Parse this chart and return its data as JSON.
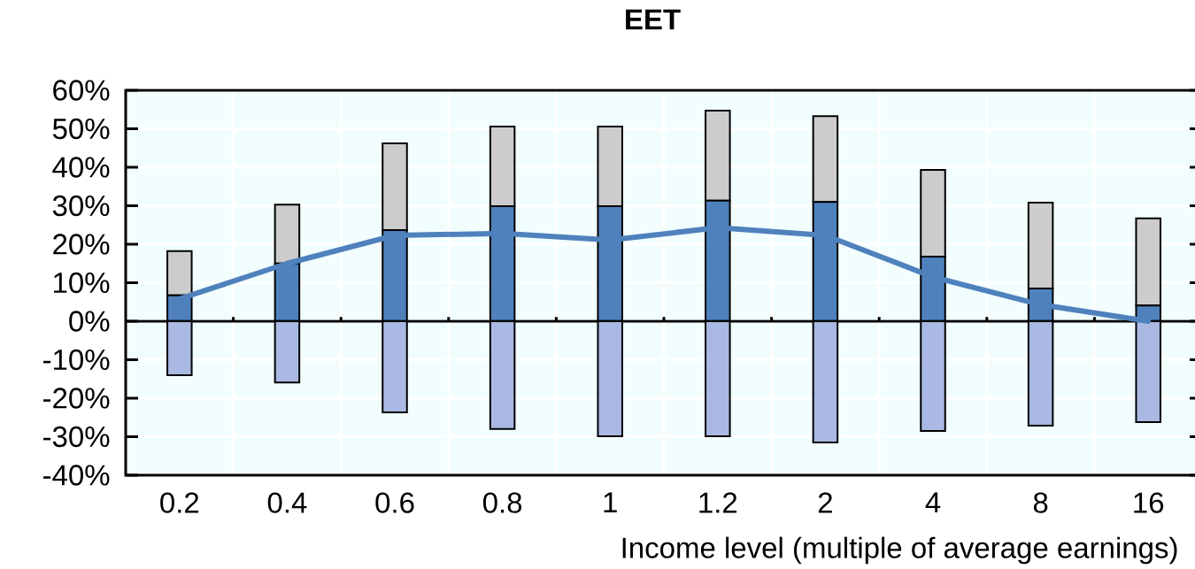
{
  "chart_data": {
    "type": "bar",
    "title": "EET",
    "xlabel": "Income level (multiple of average earnings)",
    "categories": [
      "0.2",
      "0.4",
      "0.6",
      "0.8",
      "1",
      "1.2",
      "2",
      "4",
      "8",
      "16"
    ],
    "stacked": true,
    "grid": true,
    "series": [
      {
        "color": "#4f81bd",
        "values": [
          6.7,
          15,
          23.7,
          29.9,
          29.9,
          31.3,
          31,
          16.8,
          8.5,
          4.1
        ]
      },
      {
        "color": "#cccccc",
        "values": [
          11.5,
          15.3,
          22.5,
          20.7,
          20.7,
          23.4,
          22.3,
          22.5,
          22.3,
          22.6
        ]
      },
      {
        "color": "#a9b9e3",
        "values": [
          -14,
          -15.9,
          -23.7,
          -28,
          -29.9,
          -29.9,
          -31.5,
          -28.5,
          -27.1,
          -26.2
        ]
      },
      {
        "type": "line",
        "color": "#4f81bd",
        "values": [
          5.8,
          15,
          22.3,
          22.8,
          21.1,
          24.3,
          22.3,
          11.5,
          4.3,
          0
        ]
      }
    ],
    "ylim": [
      -40,
      60
    ],
    "yticks": [
      {
        "value": -40,
        "label": "-40%"
      },
      {
        "value": -30,
        "label": "-30%"
      },
      {
        "value": -20,
        "label": "-20%"
      },
      {
        "value": -10,
        "label": "-10%"
      },
      {
        "value": 0,
        "label": "0%"
      },
      {
        "value": 10,
        "label": "10%"
      },
      {
        "value": 20,
        "label": "20%"
      },
      {
        "value": 30,
        "label": "30%"
      },
      {
        "value": 40,
        "label": "40%"
      },
      {
        "value": 50,
        "label": "50%"
      },
      {
        "value": 60,
        "label": "60%"
      }
    ]
  }
}
